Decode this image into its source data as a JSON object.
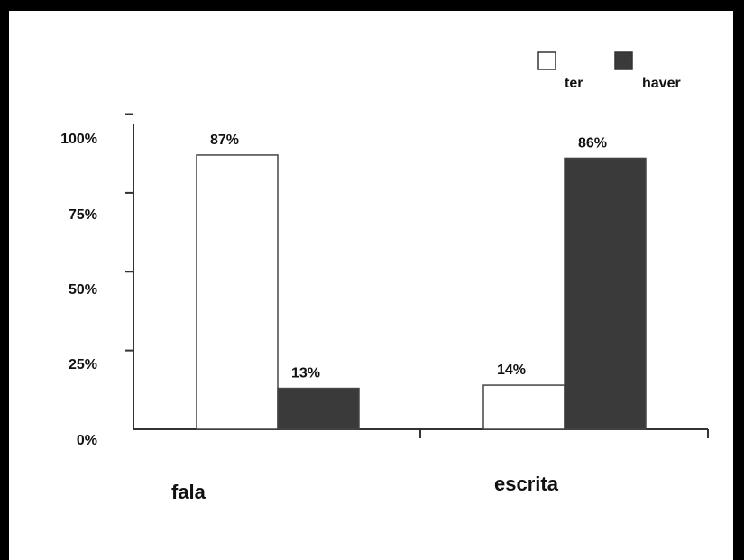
{
  "chart_data": {
    "type": "bar",
    "categories": [
      "fala",
      "escrita"
    ],
    "series": [
      {
        "name": "ter",
        "values": [
          87,
          14
        ],
        "labels": [
          "87%",
          "14%"
        ],
        "color": "#ffffff"
      },
      {
        "name": "haver",
        "values": [
          13,
          86
        ],
        "labels": [
          "13%",
          "86%"
        ],
        "color": "#3a3a3a"
      }
    ],
    "ylim": [
      0,
      100
    ],
    "yticks": [
      "0%",
      "25%",
      "50%",
      "75%",
      "100%"
    ],
    "legend_position": "top-right",
    "grid": false
  }
}
